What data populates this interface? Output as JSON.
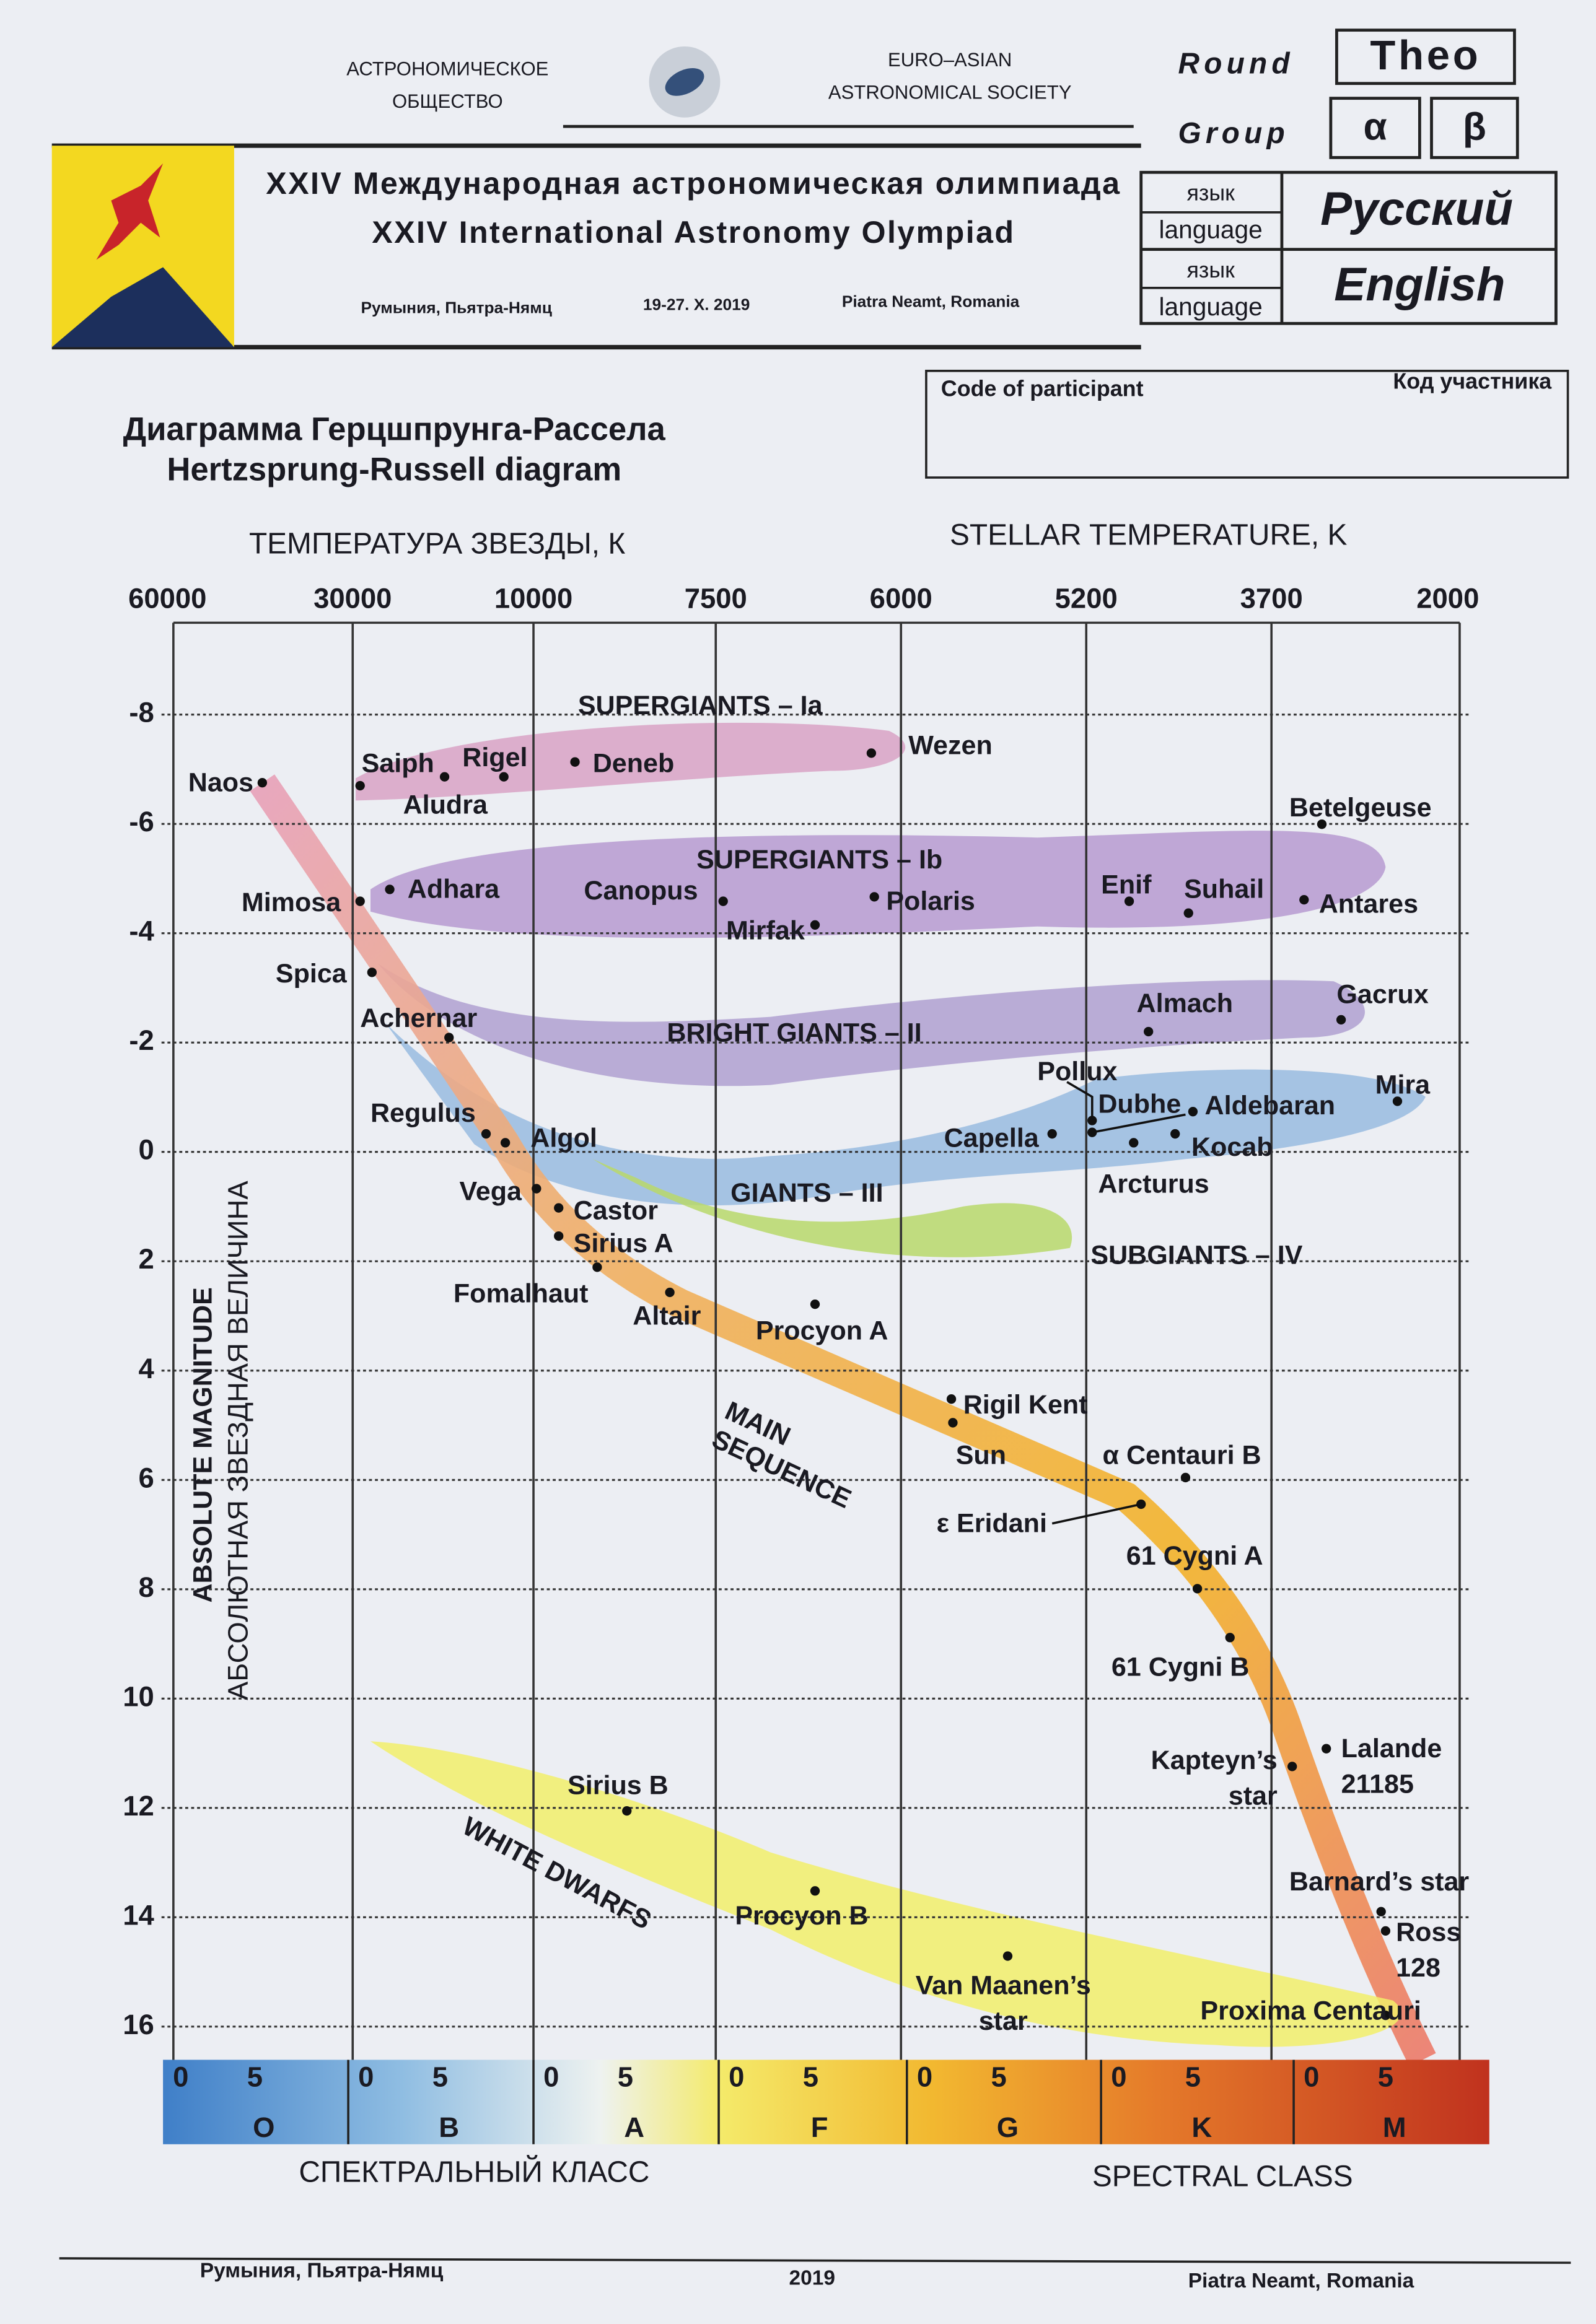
{
  "header": {
    "society_ru": [
      "АСТРОНОМИЧЕСКОЕ",
      "ОБЩЕСТВО"
    ],
    "society_en": [
      "EURO–ASIAN",
      "ASTRONOMICAL SOCIETY"
    ],
    "round_label": "Round",
    "round_value": "Theo",
    "group_label": "Group",
    "group_values": [
      "α",
      "β"
    ],
    "title_ru": "XXIV Международная астрономическая олимпиада",
    "title_en": "XXIV International Astronomy Olympiad",
    "place_ru": "Румыния, Пьятра-Нямц",
    "dates": "19-27. X. 2019",
    "place_en": "Piatra Neamt, Romania",
    "languages": [
      {
        "label": [
          "язык",
          "language"
        ],
        "value": "Русский"
      },
      {
        "label": [
          "язык",
          "language"
        ],
        "value": "English"
      }
    ]
  },
  "participant": {
    "label_en": "Code of participant",
    "label_ru": "Код участника"
  },
  "diagram": {
    "title": [
      "Диаграмма Герцшпрунга-Рассела",
      "Hertzsprung-Russell diagram"
    ],
    "temperature_title_ru": "ТЕМПЕРАТУРА ЗВЕЗДЫ, К",
    "temperature_title_en": "STELLAR TEMPERATURE, K",
    "temperatures": [
      60000,
      30000,
      10000,
      7500,
      6000,
      5200,
      3700,
      2000
    ],
    "magnitude_title_en": "ABSOLUTE MAGNITUDE",
    "magnitude_title_ru": "АБСОЛЮТНАЯ ЗВЕЗДНАЯ ВЕЛИЧИНА",
    "magnitudes": [
      -8,
      -6,
      -4,
      -2,
      0,
      2,
      4,
      6,
      8,
      10,
      12,
      14,
      16
    ],
    "spectral_title_ru": "СПЕКТРАЛЬНЫЙ КЛАСС",
    "spectral_title_en": "SPECTRAL CLASS",
    "spectral_classes": [
      {
        "class": "O",
        "subclasses": [
          "0",
          "5"
        ]
      },
      {
        "class": "B",
        "subclasses": [
          "0",
          "5"
        ]
      },
      {
        "class": "A",
        "subclasses": [
          "0",
          "5"
        ]
      },
      {
        "class": "F",
        "subclasses": [
          "0",
          "5"
        ]
      },
      {
        "class": "G",
        "subclasses": [
          "0",
          "5"
        ]
      },
      {
        "class": "K",
        "subclasses": [
          "0",
          "5"
        ]
      },
      {
        "class": "M",
        "subclasses": [
          "0",
          "5"
        ]
      }
    ],
    "regions": [
      [
        "SUPERGIANTS – Ia"
      ],
      [
        "SUPERGIANTS – Ib"
      ],
      [
        "BRIGHT GIANTS – II"
      ],
      [
        "GIANTS – III"
      ],
      [
        "SUBGIANTS – IV"
      ],
      [
        "MAIN",
        "SEQUENCE"
      ],
      [
        "WHITE DWARFS"
      ]
    ],
    "stars": [
      [
        "Naos"
      ],
      [
        "Saiph"
      ],
      [
        "Rigel"
      ],
      [
        "Aludra"
      ],
      [
        "Deneb"
      ],
      [
        "Wezen"
      ],
      [
        "Betelgeuse"
      ],
      [
        "Mimosa"
      ],
      [
        "Adhara"
      ],
      [
        "Canopus"
      ],
      [
        "Mirfak"
      ],
      [
        "Polaris"
      ],
      [
        "Enif"
      ],
      [
        "Suhail"
      ],
      [
        "Antares"
      ],
      [
        "Spica"
      ],
      [
        "Achernar"
      ],
      [
        "Almach"
      ],
      [
        "Gacrux"
      ],
      [
        "Pollux"
      ],
      [
        "Dubhe"
      ],
      [
        "Aldebaran"
      ],
      [
        "Mira"
      ],
      [
        "Capella"
      ],
      [
        "Kocab"
      ],
      [
        "Arcturus"
      ],
      [
        "Regulus"
      ],
      [
        "Algol"
      ],
      [
        "Vega"
      ],
      [
        "Castor"
      ],
      [
        "Sirius A"
      ],
      [
        "Fomalhaut"
      ],
      [
        "Altair"
      ],
      [
        "Procyon A"
      ],
      [
        "Rigil Kent"
      ],
      [
        "Sun"
      ],
      [
        "α Centauri B"
      ],
      [
        "ε Eridani"
      ],
      [
        "61 Cygni A"
      ],
      [
        "61 Cygni B"
      ],
      [
        "Kapteyn’s",
        "star"
      ],
      [
        "Lalande",
        "21185"
      ],
      [
        "Sirius B"
      ],
      [
        "Procyon B"
      ],
      [
        "Van Maanen’s",
        "star"
      ],
      [
        "Barnard’s star"
      ],
      [
        "Ross",
        "128"
      ],
      [
        "Proxima Centauri"
      ]
    ]
  },
  "footer": {
    "place_ru": "Румыния, Пьятра-Нямц",
    "year": "2019",
    "place_en": "Piatra Neamt, Romania"
  }
}
